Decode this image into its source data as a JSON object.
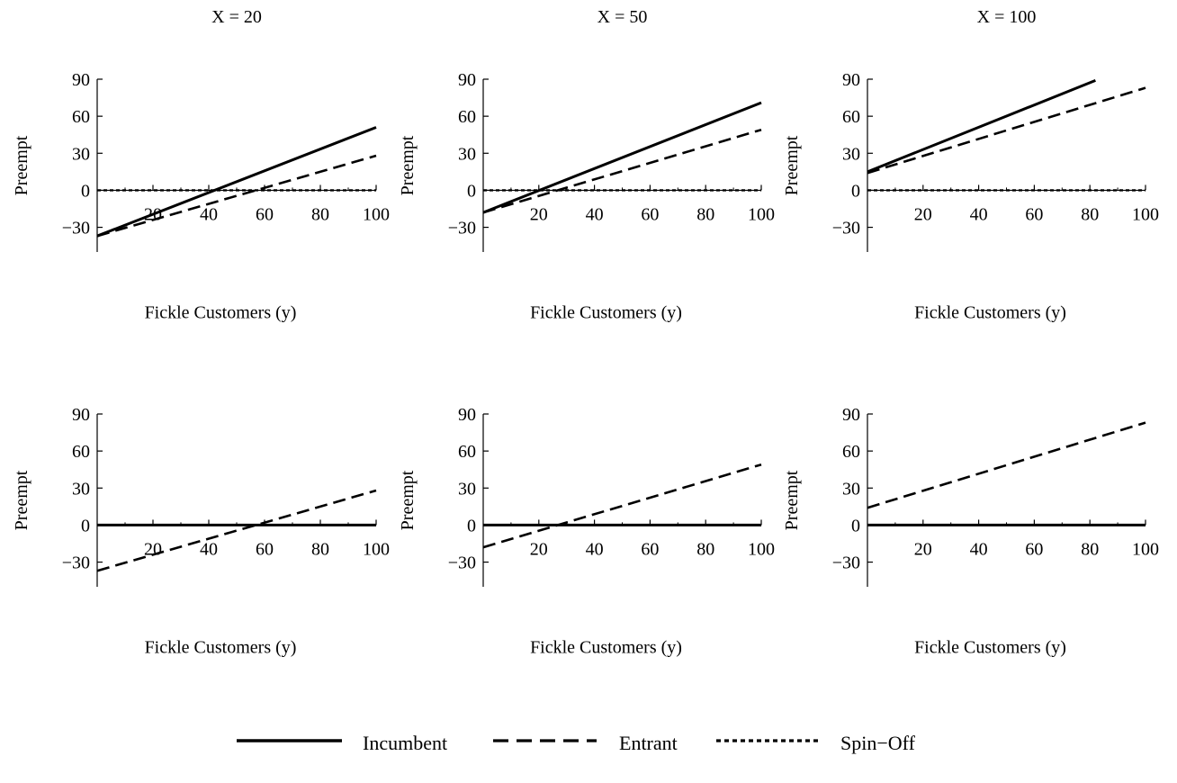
{
  "chart_data": [
    {
      "type": "line",
      "title": "X = 20",
      "xlabel": "Fickle Customers (y)",
      "ylabel": "Preempt",
      "xlim": [
        0,
        100
      ],
      "ylim": [
        -50,
        90
      ],
      "xticks": [
        20,
        40,
        60,
        80,
        100
      ],
      "yticks": [
        -30,
        0,
        30,
        60,
        90
      ],
      "series": [
        {
          "name": "Incumbent",
          "x": [
            0,
            100
          ],
          "y": [
            -37,
            51
          ]
        },
        {
          "name": "Entrant",
          "x": [
            0,
            100
          ],
          "y": [
            -37,
            28
          ]
        },
        {
          "name": "Spin-Off",
          "x": [
            0,
            100
          ],
          "y": [
            0,
            0
          ]
        }
      ]
    },
    {
      "type": "line",
      "title": "X = 50",
      "xlabel": "Fickle Customers (y)",
      "ylabel": "Preempt",
      "xlim": [
        0,
        100
      ],
      "ylim": [
        -50,
        90
      ],
      "xticks": [
        20,
        40,
        60,
        80,
        100
      ],
      "yticks": [
        -30,
        0,
        30,
        60,
        90
      ],
      "series": [
        {
          "name": "Incumbent",
          "x": [
            0,
            100
          ],
          "y": [
            -18,
            71
          ]
        },
        {
          "name": "Entrant",
          "x": [
            0,
            100
          ],
          "y": [
            -18,
            49
          ]
        },
        {
          "name": "Spin-Off",
          "x": [
            0,
            100
          ],
          "y": [
            0,
            0
          ]
        }
      ]
    },
    {
      "type": "line",
      "title": "X = 100",
      "xlabel": "Fickle Customers (y)",
      "ylabel": "Preempt",
      "xlim": [
        0,
        100
      ],
      "ylim": [
        -50,
        90
      ],
      "xticks": [
        20,
        40,
        60,
        80,
        100
      ],
      "yticks": [
        -30,
        0,
        30,
        60,
        90
      ],
      "series": [
        {
          "name": "Incumbent",
          "x": [
            0,
            82
          ],
          "y": [
            15,
            89
          ]
        },
        {
          "name": "Entrant",
          "x": [
            0,
            100
          ],
          "y": [
            14,
            83
          ]
        },
        {
          "name": "Spin-Off",
          "x": [
            0,
            100
          ],
          "y": [
            0,
            0
          ]
        }
      ]
    },
    {
      "type": "line",
      "title": "",
      "xlabel": "Fickle Customers (y)",
      "ylabel": "Preempt",
      "xlim": [
        0,
        100
      ],
      "ylim": [
        -50,
        90
      ],
      "xticks": [
        20,
        40,
        60,
        80,
        100
      ],
      "yticks": [
        -30,
        0,
        30,
        60,
        90
      ],
      "series": [
        {
          "name": "Incumbent",
          "x": [
            0,
            100
          ],
          "y": [
            0,
            0
          ]
        },
        {
          "name": "Entrant",
          "x": [
            0,
            100
          ],
          "y": [
            -37,
            28
          ]
        }
      ]
    },
    {
      "type": "line",
      "title": "",
      "xlabel": "Fickle Customers (y)",
      "ylabel": "Preempt",
      "xlim": [
        0,
        100
      ],
      "ylim": [
        -50,
        90
      ],
      "xticks": [
        20,
        40,
        60,
        80,
        100
      ],
      "yticks": [
        -30,
        0,
        30,
        60,
        90
      ],
      "series": [
        {
          "name": "Incumbent",
          "x": [
            0,
            100
          ],
          "y": [
            0,
            0
          ]
        },
        {
          "name": "Entrant",
          "x": [
            0,
            100
          ],
          "y": [
            -18,
            49
          ]
        }
      ]
    },
    {
      "type": "line",
      "title": "",
      "xlabel": "Fickle Customers (y)",
      "ylabel": "Preempt",
      "xlim": [
        0,
        100
      ],
      "ylim": [
        -50,
        90
      ],
      "xticks": [
        20,
        40,
        60,
        80,
        100
      ],
      "yticks": [
        -30,
        0,
        30,
        60,
        90
      ],
      "series": [
        {
          "name": "Incumbent",
          "x": [
            0,
            100
          ],
          "y": [
            0,
            0
          ]
        },
        {
          "name": "Entrant",
          "x": [
            0,
            100
          ],
          "y": [
            14,
            83
          ]
        }
      ]
    }
  ],
  "legend": {
    "placement": "bottom-center",
    "items": [
      {
        "label": "Incumbent",
        "style": "solid"
      },
      {
        "label": "Entrant",
        "style": "dashed"
      },
      {
        "label": "Spin−Off",
        "style": "dotted"
      }
    ]
  },
  "line_color": "#000000"
}
